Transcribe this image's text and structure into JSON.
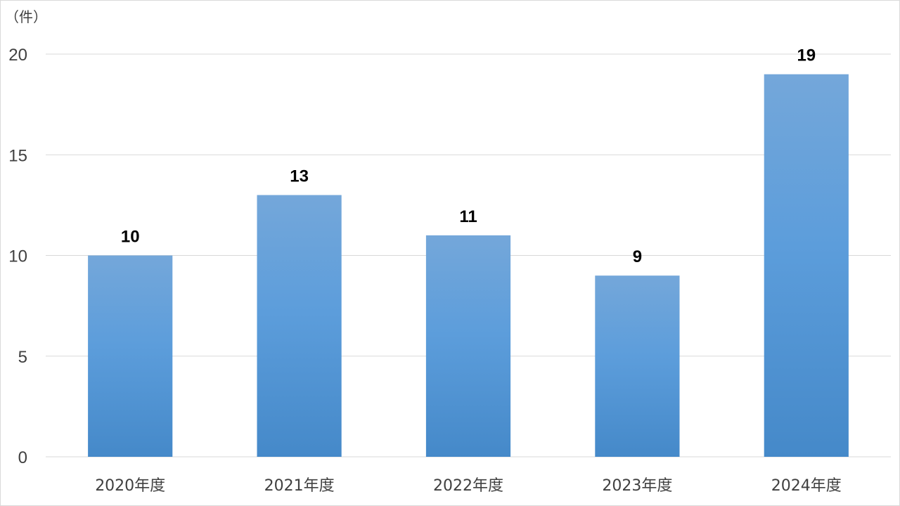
{
  "chart_data": {
    "type": "bar",
    "unit_label": "（件）",
    "categories": [
      "2020年度",
      "2021年度",
      "2022年度",
      "2023年度",
      "2024年度"
    ],
    "values": [
      10,
      13,
      11,
      9,
      19
    ],
    "data_labels": [
      "10",
      "13",
      "11",
      "9",
      "19"
    ],
    "yticks": [
      "0",
      "5",
      "10",
      "15",
      "20"
    ],
    "ylim": [
      0,
      20
    ],
    "grid": true,
    "bar_color_top": "#74a7da",
    "bar_color_bottom": "#4589c9",
    "title": "",
    "xlabel": "",
    "ylabel": ""
  }
}
